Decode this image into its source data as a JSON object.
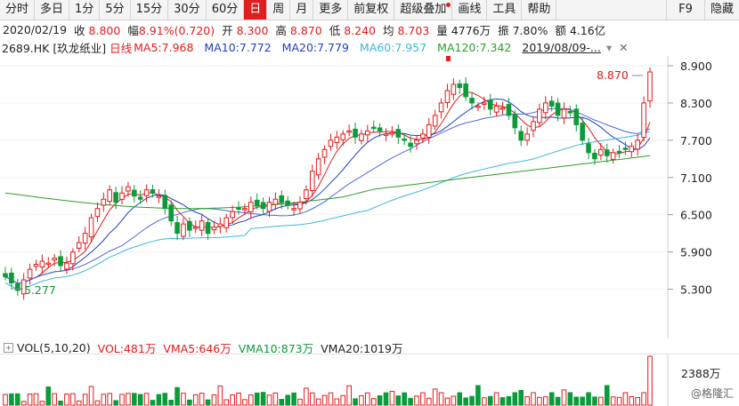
{
  "toolbar": {
    "items": [
      "分时",
      "多日",
      "1分",
      "5分",
      "15分",
      "30分",
      "60分",
      "日",
      "周",
      "月",
      "更多",
      "前复权",
      "超级叠加",
      "画线",
      "工具",
      "帮助"
    ],
    "active": "日",
    "f9": "F9",
    "hide": "隐藏"
  },
  "quote": {
    "date": "2020/02/19",
    "close_label": "收",
    "close": "8.800",
    "change_label": "幅",
    "change": "8.91%(0.720)",
    "open_label": "开",
    "open": "8.300",
    "high_label": "高",
    "high": "8.870",
    "low_label": "低",
    "low": "8.240",
    "avg_label": "均",
    "avg": "8.703",
    "vol_label": "量",
    "vol": "4776万",
    "amp_label": "振",
    "amp": "7.80%",
    "amt_label": "额",
    "amt": "4.16亿"
  },
  "ma": {
    "stock": "2689.HK [玖龙纸业]",
    "period": "日线",
    "ma5": "MA5:7.968",
    "ma10": "MA10:7.772",
    "ma20": "MA20:7.779",
    "ma60": "MA60:7.957",
    "ma120": "MA120:7.342",
    "date_sel": "2019/08/09-..."
  },
  "axis": {
    "ticks": [
      "8.900",
      "8.300",
      "7.700",
      "7.100",
      "6.500",
      "5.900",
      "5.300"
    ]
  },
  "annotations": {
    "high_value": "8.870",
    "low_value": "5.277"
  },
  "vol": {
    "indicator": "VOL(5,10,20)",
    "vol": "VOL:481万",
    "vma5": "VMA5:646万",
    "vma10": "VMA10:873万",
    "vma20": "VMA20:1019万",
    "axis_value": "2388万"
  },
  "watermark": "@格隆汇",
  "colors": {
    "up": "#e31b1b",
    "down": "#0b9b3a",
    "ma5": "#e31b1b",
    "ma10": "#1f3fbf",
    "ma20": "#1f3fbf",
    "ma60": "#3fb8d8",
    "ma120": "#2aa02a"
  }
}
